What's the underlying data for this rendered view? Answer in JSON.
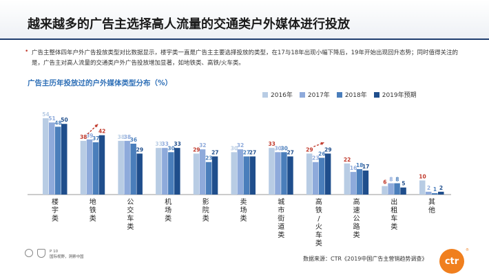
{
  "page": {
    "title": "越来越多的广告主选择高人流量的交通类户外媒体进行投放",
    "bullet": "广告主整体四年户外广告投放类型对比数据显示，楼宇类一直是广告主主要选择投放的类型，在17与18年出现小幅下降后，19年开始出现回升态势；同时值得关注的是，广告主对高人流量的交通类户外广告投放增加显著，如地铁类、高铁/火车类。",
    "page_number": "P 10",
    "footer_org": "国际视野，洞察中国",
    "source": "数据来源：CTR《2019中国广告主营销趋势调查》",
    "logo_text": "ctr",
    "logo_mark": "®"
  },
  "chart_data": {
    "type": "bar",
    "title": "广告主历年投放过的户外媒体类型分布（%）",
    "xlabel": "",
    "ylabel": "",
    "categories": [
      "楼宇类",
      "地铁类",
      "公交车类",
      "机场类",
      "影院类",
      "卖场类",
      "城市街道类",
      "高铁/火车类",
      "高速公路类",
      "出租车类",
      "其他"
    ],
    "series": [
      {
        "name": "2016年",
        "color": "#b8cce4",
        "values": [
          54,
          38,
          38,
          33,
          29,
          30,
          33,
          29,
          22,
          6,
          10
        ]
      },
      {
        "name": "2017年",
        "color": "#8eaadb",
        "values": [
          51,
          39,
          38,
          33,
          32,
          32,
          30,
          23,
          16,
          8,
          2
        ]
      },
      {
        "name": "2018年",
        "color": "#4a7ebb",
        "values": [
          48,
          37,
          36,
          30,
          23,
          27,
          30,
          26,
          18,
          8,
          1
        ]
      },
      {
        "name": "2019年预期",
        "color": "#1f4e8c",
        "values": [
          50,
          42,
          29,
          33,
          27,
          27,
          27,
          29,
          17,
          5,
          2
        ]
      }
    ],
    "red_labels": [
      {
        "category": "地铁类",
        "series": "2016年"
      },
      {
        "category": "地铁类",
        "series": "2019年预期"
      },
      {
        "category": "影院类",
        "series": "2016年"
      },
      {
        "category": "城市街道类",
        "series": "2016年"
      },
      {
        "category": "高铁/火车类",
        "series": "2016年"
      },
      {
        "category": "高速公路类",
        "series": "2016年"
      },
      {
        "category": "出租车类",
        "series": "2016年"
      },
      {
        "category": "其他",
        "series": "2016年"
      }
    ],
    "trend_arrows": [
      "地铁类",
      "高铁/火车类"
    ],
    "ylim": [
      0,
      60
    ],
    "grid": false,
    "legend_position": "top-right",
    "colors": {
      "red_label": "#c0392b",
      "axis": "#999999",
      "trend_arrow": "#c0392b"
    }
  }
}
